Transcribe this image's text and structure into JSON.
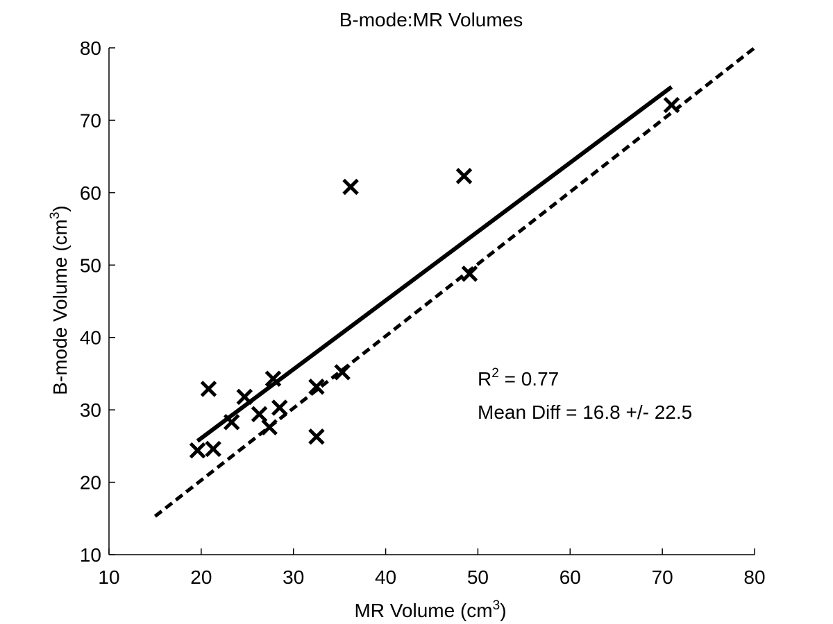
{
  "chart_data": {
    "type": "scatter",
    "title": "B-mode:MR Volumes",
    "xlabel": "MR Volume (cm",
    "xlabel_sup": "3",
    "xlabel_suffix": ")",
    "ylabel": "B-mode Volume (cm",
    "ylabel_sup": "3",
    "ylabel_suffix": ")",
    "xlim": [
      10,
      80
    ],
    "ylim": [
      10,
      80
    ],
    "xticks": [
      10,
      20,
      30,
      40,
      50,
      60,
      70,
      80
    ],
    "yticks": [
      10,
      20,
      30,
      40,
      50,
      60,
      70,
      80
    ],
    "grid": false,
    "legend": "none",
    "series": [
      {
        "marker": "x",
        "points": [
          [
            19.6,
            24.4
          ],
          [
            20.8,
            32.9
          ],
          [
            21.3,
            24.6
          ],
          [
            23.3,
            28.3
          ],
          [
            24.7,
            31.8
          ],
          [
            26.3,
            29.4
          ],
          [
            27.4,
            27.6
          ],
          [
            27.8,
            34.3
          ],
          [
            28.5,
            30.3
          ],
          [
            32.5,
            33.2
          ],
          [
            32.5,
            26.3
          ],
          [
            35.3,
            35.2
          ],
          [
            36.2,
            60.8
          ],
          [
            48.5,
            62.3
          ],
          [
            49.1,
            48.8
          ],
          [
            71.0,
            72.1
          ]
        ]
      }
    ],
    "fit_line": {
      "x": [
        19.6,
        71.0
      ],
      "y": [
        25.7,
        74.6
      ],
      "style": "solid"
    },
    "identity_line": {
      "x": [
        15.0,
        80.0
      ],
      "y": [
        15.3,
        80.0
      ],
      "style": "dashed"
    },
    "annotations": {
      "r2_prefix": "R",
      "r2_sup": "2",
      "r2_rest": " = 0.77",
      "mean_diff": "Mean Diff = 16.8 +/- 22.5"
    }
  }
}
